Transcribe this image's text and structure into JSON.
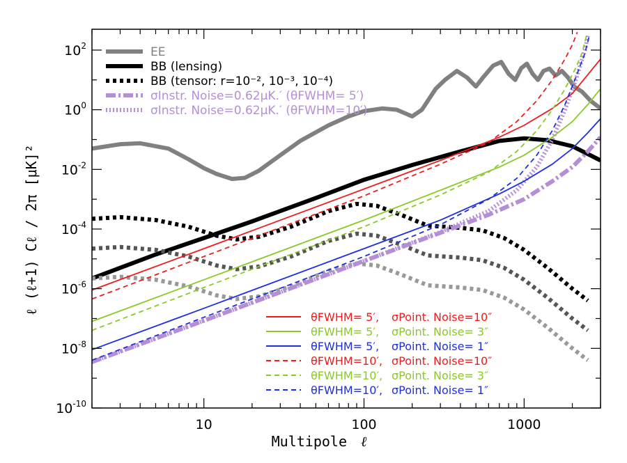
{
  "chart_data": {
    "type": "line",
    "title": "",
    "xlabel": "Multipole",
    "xlabel_symbol": "ℓ",
    "ylabel": "ℓ (ℓ+1)  Cℓ / 2π   [μK]²",
    "xscale": "log",
    "yscale": "log",
    "xlim": [
      2,
      3000
    ],
    "ylim": [
      1e-10,
      500
    ],
    "x_ticks": [
      {
        "value": 10,
        "label": "10"
      },
      {
        "value": 100,
        "label": "100"
      },
      {
        "value": 1000,
        "label": "1000"
      }
    ],
    "y_ticks": [
      {
        "value": 1e-10,
        "base": "10",
        "exp": "-10"
      },
      {
        "value": 1e-08,
        "base": "10",
        "exp": "-8"
      },
      {
        "value": 1e-06,
        "base": "10",
        "exp": "-6"
      },
      {
        "value": 0.0001,
        "base": "10",
        "exp": "-4"
      },
      {
        "value": 0.01,
        "base": "10",
        "exp": "-2"
      },
      {
        "value": 1,
        "base": "10",
        "exp": "0"
      },
      {
        "value": 100,
        "base": "10",
        "exp": "2"
      }
    ],
    "top_legend": [
      {
        "name": "EE",
        "color": "#808080",
        "style": "solid-thick"
      },
      {
        "name": "BB (lensing)",
        "color": "#000000",
        "style": "solid-thick"
      },
      {
        "name": "BB (tensor: r=10⁻², 10⁻³, 10⁻⁴)",
        "color": "#000000",
        "style": "dashed-thick"
      },
      {
        "name": "σInstr. Noise=0.62μK.′ (θFWHM= 5′)",
        "color": "#b58fd6",
        "style": "dashdot-thick"
      },
      {
        "name": "σInstr. Noise=0.62μK.′ (θFWHM=10′)",
        "color": "#b58fd6",
        "style": "dotted-thick"
      }
    ],
    "bottom_legend": [
      {
        "theta": "θFWHM= 5′,",
        "sigma": "σPoint. Noise=10″",
        "color": "#ee1c1c",
        "style": "solid"
      },
      {
        "theta": "θFWHM= 5′,",
        "sigma": "σPoint. Noise=  3″",
        "color": "#8ac926",
        "style": "solid"
      },
      {
        "theta": "θFWHM= 5′,",
        "sigma": "σPoint. Noise=  1″",
        "color": "#1f2fe0",
        "style": "solid"
      },
      {
        "theta": "θFWHM=10′,",
        "sigma": "σPoint. Noise=10″",
        "color": "#ee1c1c",
        "style": "dashed"
      },
      {
        "theta": "θFWHM=10′,",
        "sigma": "σPoint. Noise=  3″",
        "color": "#8ac926",
        "style": "dashed"
      },
      {
        "theta": "θFWHM=10′,",
        "sigma": "σPoint. Noise=  1″",
        "color": "#1f2fe0",
        "style": "dashed"
      }
    ],
    "series": [
      {
        "name": "EE",
        "color": "#808080",
        "width": 6,
        "dash": "",
        "points": [
          [
            2,
            0.05
          ],
          [
            3,
            0.07
          ],
          [
            4,
            0.075
          ],
          [
            6,
            0.05
          ],
          [
            8,
            0.022
          ],
          [
            10,
            0.011
          ],
          [
            12,
            0.007
          ],
          [
            15,
            0.0048
          ],
          [
            18,
            0.0052
          ],
          [
            22,
            0.009
          ],
          [
            30,
            0.03
          ],
          [
            40,
            0.09
          ],
          [
            60,
            0.3
          ],
          [
            80,
            0.6
          ],
          [
            100,
            0.9
          ],
          [
            130,
            1.1
          ],
          [
            160,
            1.0
          ],
          [
            200,
            0.6
          ],
          [
            230,
            1.0
          ],
          [
            280,
            5
          ],
          [
            320,
            10
          ],
          [
            380,
            20
          ],
          [
            440,
            12
          ],
          [
            500,
            6
          ],
          [
            560,
            13
          ],
          [
            640,
            30
          ],
          [
            720,
            40
          ],
          [
            800,
            16
          ],
          [
            880,
            10
          ],
          [
            960,
            25
          ],
          [
            1040,
            35
          ],
          [
            1130,
            16
          ],
          [
            1220,
            10
          ],
          [
            1320,
            20
          ],
          [
            1440,
            24
          ],
          [
            1570,
            14
          ],
          [
            1720,
            20
          ],
          [
            1880,
            12
          ],
          [
            2050,
            6
          ],
          [
            2300,
            4
          ],
          [
            2600,
            2
          ],
          [
            3000,
            1.1
          ]
        ]
      },
      {
        "name": "BB (lensing)",
        "color": "#000000",
        "width": 6,
        "dash": "",
        "points": [
          [
            2,
            2.2e-06
          ],
          [
            3,
            5e-06
          ],
          [
            5,
            1.4e-05
          ],
          [
            10,
            5e-05
          ],
          [
            20,
            0.00018
          ],
          [
            50,
            0.0011
          ],
          [
            100,
            0.0045
          ],
          [
            200,
            0.014
          ],
          [
            400,
            0.04
          ],
          [
            700,
            0.09
          ],
          [
            1000,
            0.11
          ],
          [
            1400,
            0.095
          ],
          [
            2000,
            0.06
          ],
          [
            3000,
            0.02
          ]
        ]
      },
      {
        "name": "BB tensor r=1e-2",
        "color": "#000000",
        "width": 6,
        "dash": "5 5",
        "points": [
          [
            2,
            0.00022
          ],
          [
            3,
            0.00025
          ],
          [
            5,
            0.0002
          ],
          [
            8,
            0.00012
          ],
          [
            12,
            6e-05
          ],
          [
            16,
            4.5e-05
          ],
          [
            22,
            5.5e-05
          ],
          [
            35,
            0.00012
          ],
          [
            60,
            0.0004
          ],
          [
            90,
            0.0007
          ],
          [
            120,
            0.0006
          ],
          [
            170,
            0.0003
          ],
          [
            250,
            0.00013
          ],
          [
            400,
            0.00011
          ],
          [
            550,
            9e-05
          ],
          [
            750,
            5e-05
          ],
          [
            1000,
            2e-05
          ],
          [
            1400,
            5e-06
          ],
          [
            2000,
            1e-06
          ],
          [
            2500,
            4e-07
          ]
        ]
      },
      {
        "name": "BB tensor r=1e-3",
        "color": "#555555",
        "width": 6,
        "dash": "5 5",
        "points": [
          [
            2,
            2.2e-05
          ],
          [
            3,
            2.5e-05
          ],
          [
            5,
            2e-05
          ],
          [
            8,
            1.2e-05
          ],
          [
            12,
            6e-06
          ],
          [
            16,
            4.5e-06
          ],
          [
            22,
            5.5e-06
          ],
          [
            35,
            1.2e-05
          ],
          [
            60,
            4e-05
          ],
          [
            90,
            7e-05
          ],
          [
            120,
            6e-05
          ],
          [
            170,
            3e-05
          ],
          [
            250,
            1.3e-05
          ],
          [
            400,
            1.1e-05
          ],
          [
            550,
            9e-06
          ],
          [
            750,
            5e-06
          ],
          [
            1000,
            2e-06
          ],
          [
            1400,
            5e-07
          ],
          [
            2000,
            1e-07
          ],
          [
            2500,
            4e-08
          ]
        ]
      },
      {
        "name": "BB tensor r=1e-4",
        "color": "#999999",
        "width": 6,
        "dash": "5 5",
        "points": [
          [
            2,
            2.2e-06
          ],
          [
            3,
            2.5e-06
          ],
          [
            5,
            2e-06
          ],
          [
            8,
            1.2e-06
          ],
          [
            12,
            6e-07
          ],
          [
            16,
            4.5e-07
          ],
          [
            22,
            5.5e-07
          ],
          [
            35,
            1.2e-06
          ],
          [
            60,
            4e-06
          ],
          [
            90,
            7e-06
          ],
          [
            120,
            6e-06
          ],
          [
            170,
            3e-06
          ],
          [
            250,
            1.3e-06
          ],
          [
            400,
            1.1e-06
          ],
          [
            550,
            9e-07
          ],
          [
            750,
            5e-07
          ],
          [
            1000,
            2e-07
          ],
          [
            1400,
            5e-08
          ],
          [
            2000,
            1e-08
          ],
          [
            2500,
            4e-09
          ]
        ]
      },
      {
        "name": "Instr noise 5'",
        "color": "#b58fd6",
        "width": 6,
        "dash": "14 4 3 4",
        "points": [
          [
            2,
            3.5e-09
          ],
          [
            10,
            8.5e-08
          ],
          [
            100,
            8.5e-06
          ],
          [
            300,
            7.5e-05
          ],
          [
            600,
            0.0003
          ],
          [
            1000,
            0.001
          ],
          [
            1500,
            0.004
          ],
          [
            2000,
            0.012
          ],
          [
            2500,
            0.04
          ],
          [
            3000,
            0.12
          ]
        ]
      },
      {
        "name": "Instr noise 10'",
        "color": "#b58fd6",
        "width": 6,
        "dash": "2 3",
        "points": [
          [
            2,
            3.5e-09
          ],
          [
            10,
            8.5e-08
          ],
          [
            100,
            8.5e-06
          ],
          [
            300,
            8e-05
          ],
          [
            600,
            0.0004
          ],
          [
            900,
            0.002
          ],
          [
            1200,
            0.012
          ],
          [
            1500,
            0.1
          ],
          [
            1800,
            1
          ],
          [
            2100,
            10
          ],
          [
            2400,
            100
          ],
          [
            2500,
            300
          ]
        ]
      },
      {
        "name": "θFWHM=5', σ=10\"",
        "color": "#ee1c1c",
        "width": 1.8,
        "dash": "",
        "points": [
          [
            2,
            9e-07
          ],
          [
            10,
            2.2e-05
          ],
          [
            100,
            0.0022
          ],
          [
            300,
            0.02
          ],
          [
            700,
            0.12
          ],
          [
            1000,
            0.3
          ],
          [
            1500,
            1.1
          ],
          [
            2000,
            3.5
          ],
          [
            2500,
            15
          ],
          [
            3000,
            50
          ]
        ]
      },
      {
        "name": "θFWHM=5', σ=3\"",
        "color": "#8ac926",
        "width": 1.8,
        "dash": "",
        "points": [
          [
            2,
            8e-08
          ],
          [
            10,
            2e-06
          ],
          [
            100,
            0.0002
          ],
          [
            300,
            0.002
          ],
          [
            700,
            0.012
          ],
          [
            1000,
            0.03
          ],
          [
            1500,
            0.12
          ],
          [
            2000,
            0.4
          ],
          [
            2500,
            1.5
          ],
          [
            3000,
            5
          ]
        ]
      },
      {
        "name": "θFWHM=5', σ=1\"",
        "color": "#1f2fe0",
        "width": 1.8,
        "dash": "",
        "points": [
          [
            2,
            9e-09
          ],
          [
            10,
            2.2e-07
          ],
          [
            100,
            2.2e-05
          ],
          [
            300,
            0.0002
          ],
          [
            700,
            0.0015
          ],
          [
            1000,
            0.004
          ],
          [
            1500,
            0.015
          ],
          [
            2000,
            0.05
          ],
          [
            2500,
            0.17
          ],
          [
            3000,
            0.5
          ]
        ]
      },
      {
        "name": "θFWHM=10', σ=10\"",
        "color": "#ee1c1c",
        "width": 1.8,
        "dash": "7 5",
        "points": [
          [
            2,
            4.5e-07
          ],
          [
            10,
            1.2e-05
          ],
          [
            100,
            0.0013
          ],
          [
            300,
            0.015
          ],
          [
            600,
            0.08
          ],
          [
            900,
            0.4
          ],
          [
            1200,
            2
          ],
          [
            1500,
            10
          ],
          [
            1800,
            50
          ],
          [
            2000,
            150
          ],
          [
            2150,
            400
          ]
        ]
      },
      {
        "name": "θFWHM=10', σ=3\"",
        "color": "#8ac926",
        "width": 1.8,
        "dash": "7 5",
        "points": [
          [
            2,
            4e-08
          ],
          [
            10,
            1.1e-06
          ],
          [
            100,
            0.00012
          ],
          [
            300,
            0.0014
          ],
          [
            600,
            0.008
          ],
          [
            900,
            0.04
          ],
          [
            1200,
            0.2
          ],
          [
            1500,
            1
          ],
          [
            1800,
            5
          ],
          [
            2100,
            25
          ],
          [
            2300,
            80
          ],
          [
            2450,
            300
          ]
        ]
      },
      {
        "name": "θFWHM=10', σ=1\"",
        "color": "#1f2fe0",
        "width": 1.8,
        "dash": "7 5",
        "points": [
          [
            2,
            4e-09
          ],
          [
            10,
            1.1e-07
          ],
          [
            100,
            1.2e-05
          ],
          [
            300,
            0.00014
          ],
          [
            600,
            0.001
          ],
          [
            900,
            0.005
          ],
          [
            1200,
            0.03
          ],
          [
            1500,
            0.2
          ],
          [
            1800,
            1.5
          ],
          [
            2100,
            12
          ],
          [
            2400,
            80
          ],
          [
            2550,
            300
          ]
        ]
      }
    ]
  }
}
